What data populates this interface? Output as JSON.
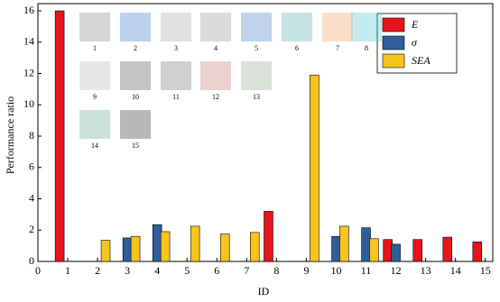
{
  "chart_data": {
    "type": "bar",
    "x": [
      1,
      2,
      3,
      4,
      5,
      6,
      7,
      8,
      9,
      10,
      11,
      12,
      13,
      14,
      15
    ],
    "series": [
      {
        "name": "E",
        "color": "#e8141b",
        "values": [
          16,
          null,
          null,
          null,
          null,
          null,
          null,
          3.2,
          null,
          null,
          null,
          1.4,
          1.4,
          1.55,
          1.25
        ]
      },
      {
        "name": "σ",
        "color": "#2e5f9a",
        "values": [
          null,
          null,
          1.5,
          2.35,
          null,
          null,
          null,
          null,
          null,
          1.6,
          2.15,
          1.1,
          null,
          null,
          null
        ]
      },
      {
        "name": "SEA",
        "color": "#f7c51e",
        "values": [
          null,
          1.35,
          1.6,
          1.9,
          2.25,
          1.75,
          1.85,
          null,
          11.9,
          2.25,
          1.45,
          null,
          null,
          null,
          null
        ]
      }
    ],
    "xlabel": "ID",
    "ylabel": "Performance ratio",
    "xlim": [
      0,
      15.25
    ],
    "xticks": [
      0,
      1,
      2,
      3,
      4,
      5,
      6,
      7,
      8,
      9,
      10,
      11,
      12,
      13,
      14,
      15
    ],
    "ylim": [
      0,
      16
    ],
    "yticks": [
      0,
      2,
      4,
      6,
      8,
      10,
      12,
      14,
      16
    ],
    "legend": "top-right",
    "insets": [
      "1",
      "2",
      "3",
      "4",
      "5",
      "6",
      "7",
      "8",
      "9",
      "10",
      "11",
      "12",
      "13",
      "14",
      "15"
    ]
  }
}
